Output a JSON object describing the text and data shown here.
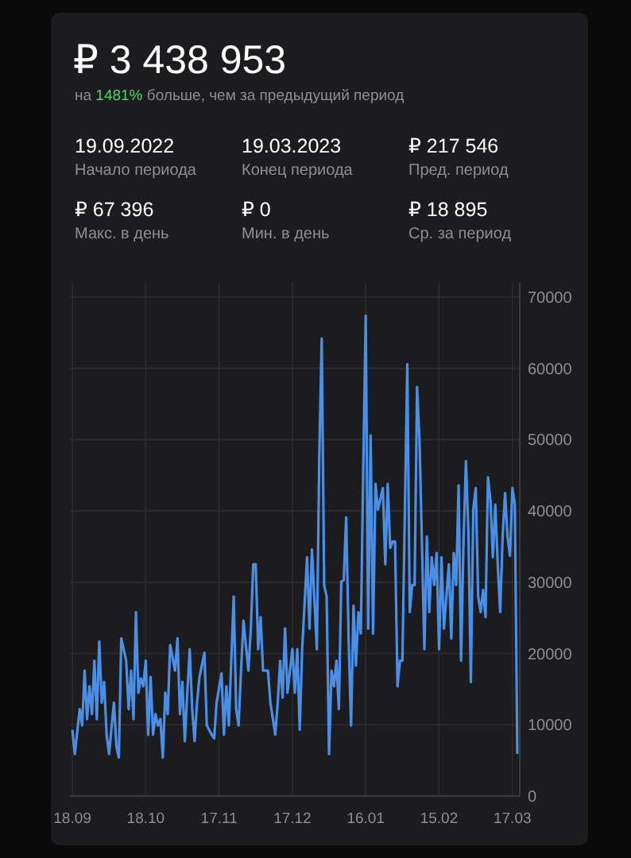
{
  "chart_data": {
    "type": "line",
    "title": "₽ 3 438 953",
    "subtitle": "на 1481% больше, чем за предыдущий период",
    "annotations": [
      "19.09.2022",
      "Начало периода",
      "19.03.2023",
      "Конец периода",
      "₽  217 546",
      "Пред. период",
      "₽ 67 396",
      "Макс. в день",
      "₽ 0",
      "Мин. в день",
      "₽ 18 895",
      "Ср. за период"
    ],
    "x": [
      "2022-09-18",
      "2022-09-19",
      "2022-09-21",
      "2022-09-22",
      "2022-09-23",
      "2022-09-24",
      "2022-09-25",
      "2022-09-26",
      "2022-09-27",
      "2022-09-28",
      "2022-09-29",
      "2022-09-30",
      "2022-10-01",
      "2022-10-02",
      "2022-10-03",
      "2022-10-05",
      "2022-10-06",
      "2022-10-07",
      "2022-10-08",
      "2022-10-10",
      "2022-10-11",
      "2022-10-12",
      "2022-10-13",
      "2022-10-14",
      "2022-10-15",
      "2022-10-16",
      "2022-10-17",
      "2022-10-18",
      "2022-10-19",
      "2022-10-20",
      "2022-10-21",
      "2022-10-22",
      "2022-10-23",
      "2022-10-24",
      "2022-10-25",
      "2022-10-26",
      "2022-10-27",
      "2022-10-28",
      "2022-10-30",
      "2022-10-31",
      "2022-11-01",
      "2022-11-02",
      "2022-11-03",
      "2022-11-04",
      "2022-11-05",
      "2022-11-06",
      "2022-11-07",
      "2022-11-08",
      "2022-11-09",
      "2022-11-11",
      "2022-11-12",
      "2022-11-14",
      "2022-11-15",
      "2022-11-16",
      "2022-11-18",
      "2022-11-19",
      "2022-11-20",
      "2022-11-21",
      "2022-11-23",
      "2022-11-24",
      "2022-11-25",
      "2022-11-26",
      "2022-11-27",
      "2022-11-29",
      "2022-11-30",
      "2022-12-01",
      "2022-12-02",
      "2022-12-03",
      "2022-12-04",
      "2022-12-05",
      "2022-12-07",
      "2022-12-08",
      "2022-12-10",
      "2022-12-11",
      "2022-12-12",
      "2022-12-13",
      "2022-12-14",
      "2022-12-15",
      "2022-12-17",
      "2022-12-18",
      "2022-12-19",
      "2022-12-20",
      "2022-12-21",
      "2022-12-23",
      "2022-12-24",
      "2022-12-25",
      "2022-12-27",
      "2022-12-28",
      "2022-12-29",
      "2022-12-30",
      "2022-12-31",
      "2023-01-01",
      "2023-01-02",
      "2023-01-03",
      "2023-01-04",
      "2023-01-05",
      "2023-01-06",
      "2023-01-07",
      "2023-01-08",
      "2023-01-09",
      "2023-01-10",
      "2023-01-11",
      "2023-01-12",
      "2023-01-13",
      "2023-01-14",
      "2023-01-15",
      "2023-01-16",
      "2023-01-17",
      "2023-01-18",
      "2023-01-19",
      "2023-01-20",
      "2023-01-21",
      "2023-01-23",
      "2023-01-24",
      "2023-01-25",
      "2023-01-26",
      "2023-01-27",
      "2023-01-28",
      "2023-01-29",
      "2023-01-30",
      "2023-01-31",
      "2023-02-02",
      "2023-02-03",
      "2023-02-04",
      "2023-02-05",
      "2023-02-06",
      "2023-02-07",
      "2023-02-09",
      "2023-02-10",
      "2023-02-11",
      "2023-02-12",
      "2023-02-13",
      "2023-02-14",
      "2023-02-15",
      "2023-02-16",
      "2023-02-17",
      "2023-02-19",
      "2023-02-20",
      "2023-02-21",
      "2023-02-22",
      "2023-02-23",
      "2023-02-24",
      "2023-02-25",
      "2023-02-26",
      "2023-02-27",
      "2023-02-28",
      "2023-03-01",
      "2023-03-02",
      "2023-03-03",
      "2023-03-04",
      "2023-03-05",
      "2023-03-06",
      "2023-03-07",
      "2023-03-08",
      "2023-03-09",
      "2023-03-10",
      "2023-03-11",
      "2023-03-12",
      "2023-03-13",
      "2023-03-14",
      "2023-03-15",
      "2023-03-16",
      "2023-03-17",
      "2023-03-18",
      "2023-03-19"
    ],
    "series": [
      {
        "color": "#4a8fe6",
        "values": [
          9300,
          5900,
          12200,
          9900,
          17600,
          10800,
          15400,
          11500,
          19000,
          10800,
          21700,
          13100,
          16000,
          8600,
          5900,
          13100,
          7000,
          5400,
          22100,
          19000,
          12200,
          17600,
          10800,
          25800,
          14500,
          16500,
          15400,
          19000,
          8600,
          16700,
          8600,
          11500,
          9900,
          10800,
          5400,
          14500,
          11500,
          21200,
          17600,
          22100,
          11500,
          16000,
          7700,
          14500,
          20600,
          12200,
          7700,
          13100,
          16700,
          20100,
          9900,
          8600,
          8100,
          13100,
          17200,
          8600,
          15400,
          9900,
          28000,
          12200,
          9900,
          17600,
          24600,
          17600,
          23500,
          32500,
          32500,
          20600,
          25100,
          17600,
          17600,
          13100,
          8600,
          13100,
          19000,
          13800,
          23500,
          14500,
          20600,
          14500,
          20600,
          9300,
          20600,
          33500,
          23500,
          34600,
          20600,
          47700,
          64200,
          29600,
          28000,
          5900,
          17600,
          15400,
          19000,
          12200,
          30100,
          30300,
          39100,
          22100,
          9900,
          26700,
          18300,
          25800,
          22800,
          46100,
          67396,
          23500,
          50600,
          22800,
          43800,
          40200,
          43200,
          32500,
          43800,
          34800,
          35700,
          35700,
          15400,
          19000,
          19000,
          60600,
          25800,
          29600,
          29600,
          57400,
          49900,
          20600,
          36400,
          25800,
          33500,
          29600,
          34100,
          20600,
          33500,
          23500,
          32500,
          22100,
          34100,
          29600,
          43600,
          19000,
          35700,
          47000,
          37100,
          16000,
          40200,
          43200,
          28000,
          25800,
          28900,
          25100,
          44700,
          41600,
          33500,
          40900,
          32500,
          25800,
          36400,
          42500,
          36400,
          33700,
          43200,
          40900,
          5900
        ]
      }
    ],
    "xlim": [
      "2022-09-17",
      "2023-03-20"
    ],
    "xticks": [
      {
        "value": "2022-09-18",
        "label": "18.09"
      },
      {
        "value": "2022-10-18",
        "label": "18.10"
      },
      {
        "value": "2022-11-17",
        "label": "17.11"
      },
      {
        "value": "2022-12-17",
        "label": "17.12"
      },
      {
        "value": "2023-01-16",
        "label": "16.01"
      },
      {
        "value": "2023-02-15",
        "label": "15.02"
      },
      {
        "value": "2023-03-17",
        "label": "17.03"
      }
    ],
    "ylim": [
      0,
      72000
    ],
    "yticks": [
      0,
      10000,
      20000,
      30000,
      40000,
      50000,
      60000,
      70000
    ],
    "grid": true,
    "line_style": "solid",
    "marker": "none"
  }
}
